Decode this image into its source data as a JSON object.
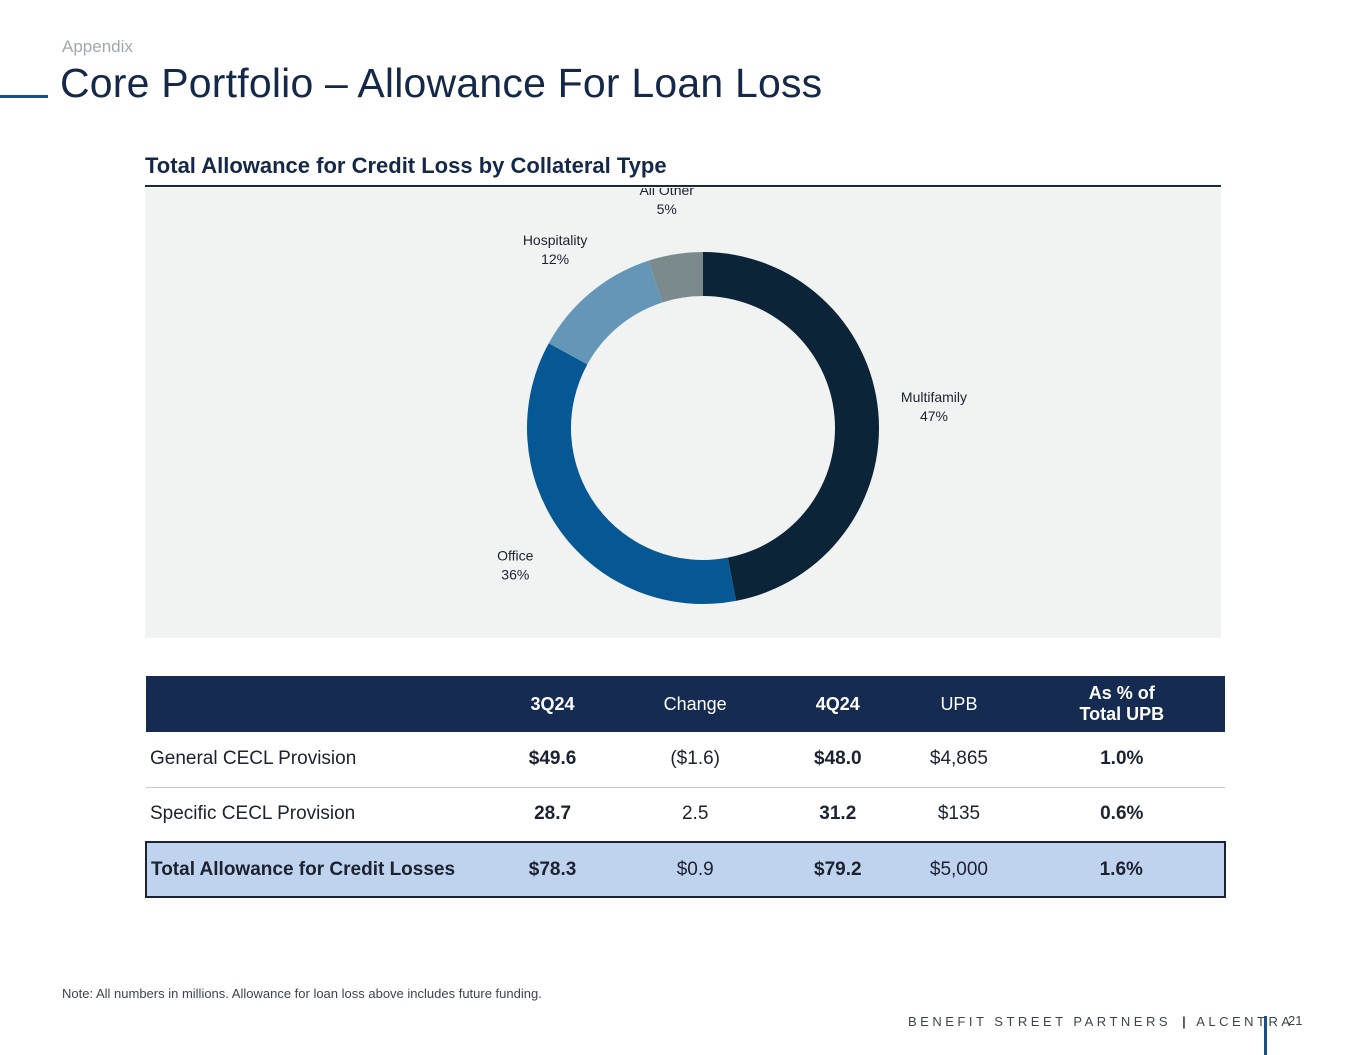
{
  "header": {
    "section": "Appendix",
    "title": "Core Portfolio – Allowance For Loan Loss"
  },
  "chart_heading": "Total Allowance for Credit Loss by Collateral Type",
  "chart_data": {
    "type": "pie",
    "variant": "donut",
    "title": "Total Allowance for Credit Loss by Collateral Type",
    "slices": [
      {
        "name": "Multifamily",
        "value": 47,
        "label": "47%",
        "color": "#0b2438"
      },
      {
        "name": "Office",
        "value": 36,
        "label": "36%",
        "color": "#065895"
      },
      {
        "name": "Hospitality",
        "value": 12,
        "label": "12%",
        "color": "#6497b7"
      },
      {
        "name": "All Other",
        "value": 5,
        "label": "5%",
        "color": "#7b8b8d"
      }
    ],
    "legend": "none",
    "background": "#f1f2f2"
  },
  "table": {
    "headers": [
      "",
      "3Q24",
      "Change",
      "4Q24",
      "UPB",
      "As % of Total UPB"
    ],
    "header_lines": {
      "pct_line1": "As % of",
      "pct_line2": "Total UPB"
    },
    "rows": [
      {
        "label": "General CECL Provision",
        "q3": "$49.6",
        "change": "($1.6)",
        "q4": "$48.0",
        "upb": "$4,865",
        "pct": "1.0%"
      },
      {
        "label": "Specific CECL Provision",
        "q3": "28.7",
        "change": "2.5",
        "q4": "31.2",
        "upb": "$135",
        "pct": "0.6%"
      }
    ],
    "total": {
      "label": "Total Allowance for Credit Losses",
      "q3": "$78.3",
      "change": "$0.9",
      "q4": "$79.2",
      "upb": "$5,000",
      "pct": "1.6%"
    },
    "colors": {
      "header_bg": "#162b52",
      "total_bg": "#bfd2ee"
    }
  },
  "footer": {
    "note": "Note: All numbers in millions. Allowance for loan loss above includes future funding.",
    "brand_left": "BENEFIT STREET PARTNERS",
    "brand_sep": "|",
    "brand_right": "ALCENTRA",
    "page_number": "21"
  }
}
